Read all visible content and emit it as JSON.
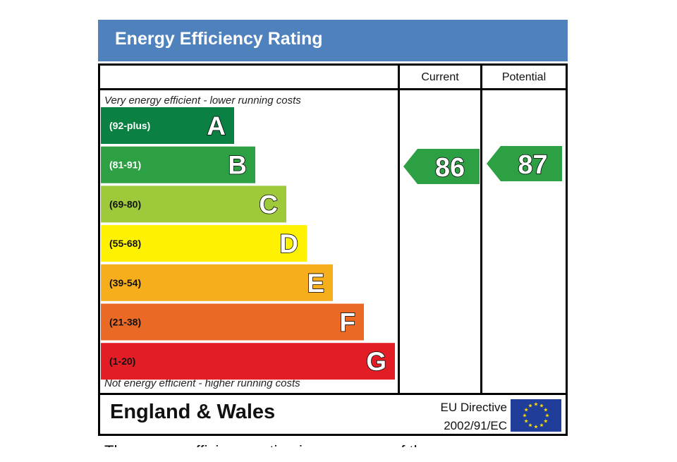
{
  "title": "Energy Efficiency Rating",
  "columns": {
    "current": "Current",
    "potential": "Potential"
  },
  "top_caption": "Very energy efficient - lower running costs",
  "bottom_caption": "Not energy efficient - higher running costs",
  "footer": {
    "region": "England & Wales",
    "directive_line1": "EU Directive",
    "directive_line2": "2002/91/EC"
  },
  "cutoff_text": "The energy efficiency rating is a measure of the",
  "colors": {
    "header": "#4f81bd",
    "A": "#008054",
    "B": "#19b459",
    "C": "#8dce46",
    "D": "#ffd500",
    "E": "#fcaa65",
    "F": "#ef8023",
    "G": "#e9153b",
    "eu_flag": "#1f3d99",
    "eu_star": "#ffdd00"
  },
  "chart_data": {
    "type": "bar",
    "bands": [
      {
        "letter": "A",
        "range": "(92-plus)",
        "color": "#0a8043",
        "min": 92,
        "max": 100
      },
      {
        "letter": "B",
        "range": "(81-91)",
        "color": "#2ca043",
        "min": 81,
        "max": 91
      },
      {
        "letter": "C",
        "range": "(69-80)",
        "color": "#9ec93b",
        "min": 69,
        "max": 80
      },
      {
        "letter": "D",
        "range": "(55-68)",
        "color": "#fff200",
        "min": 55,
        "max": 68
      },
      {
        "letter": "E",
        "range": "(39-54)",
        "color": "#f7ae1d",
        "min": 39,
        "max": 54
      },
      {
        "letter": "F",
        "range": "(21-38)",
        "color": "#ea6a25",
        "min": 21,
        "max": 38
      },
      {
        "letter": "G",
        "range": "(1-20)",
        "color": "#e31d26",
        "min": 1,
        "max": 20
      }
    ],
    "current": {
      "value": 86,
      "band": "B"
    },
    "potential": {
      "value": 87,
      "band": "B"
    }
  }
}
